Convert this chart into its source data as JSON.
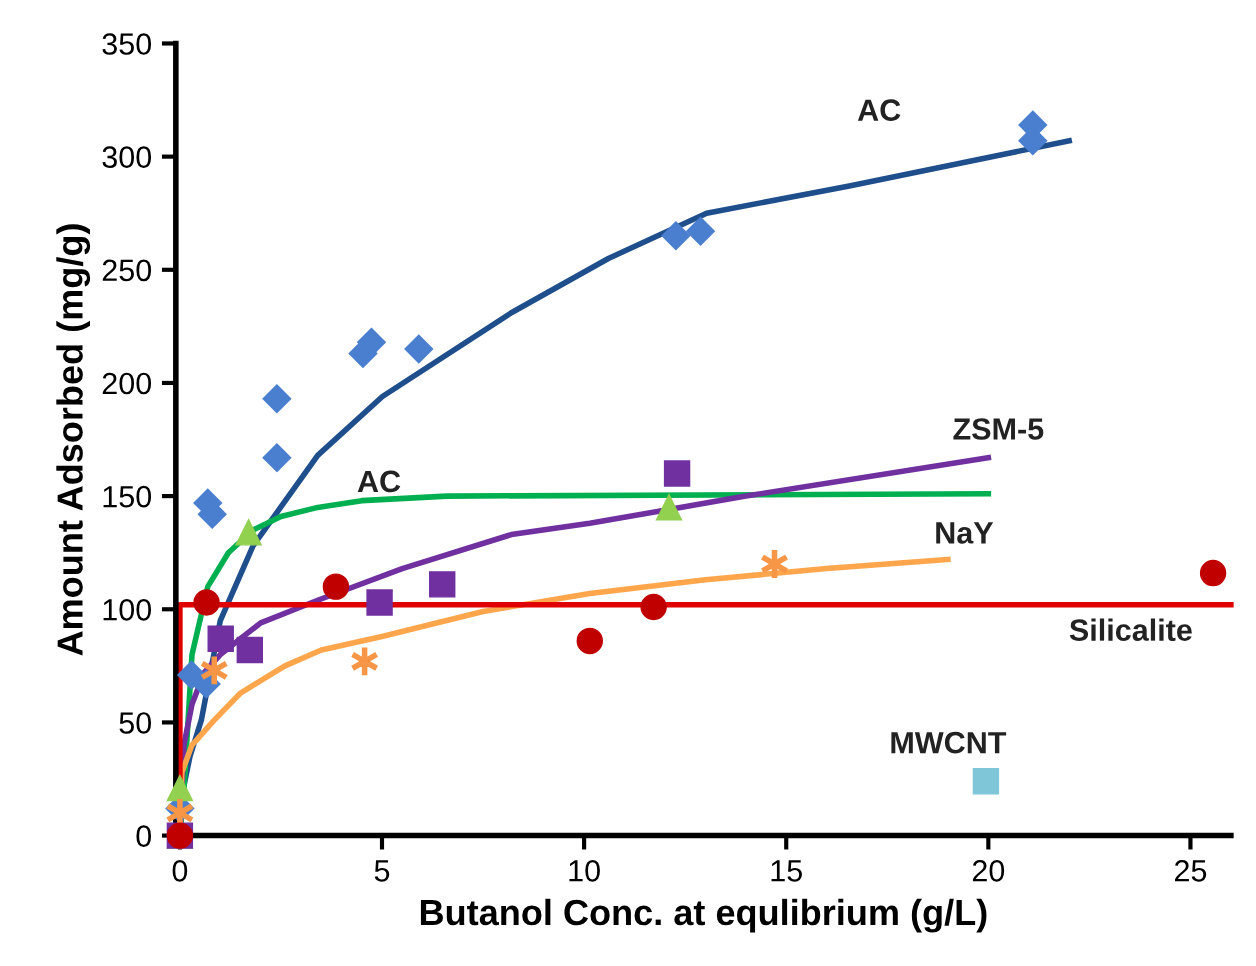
{
  "chart_data": {
    "type": "scatter",
    "xlabel": "Butanol Conc. at equlibrium (g/L)",
    "ylabel": "Amount Adsorbed (mg/g)",
    "xlim": [
      -0.1,
      26
    ],
    "ylim": [
      0,
      350
    ],
    "xticks": [
      0,
      5,
      10,
      15,
      20,
      25
    ],
    "yticks": [
      0,
      50,
      100,
      150,
      200,
      250,
      300,
      350
    ],
    "grid": false,
    "legend": false,
    "series": [
      {
        "type": "line",
        "name": "AC",
        "color": "#1f4e8c",
        "marker": "none",
        "x": [
          0,
          0.1,
          0.25,
          0.53,
          1.0,
          1.81,
          3.41,
          5.01,
          8.2,
          10.6,
          13.03,
          16.56,
          22.0
        ],
        "values": [
          0,
          22,
          35,
          51,
          95,
          128,
          168,
          194,
          231,
          255,
          275,
          287,
          307
        ]
      },
      {
        "type": "line",
        "name": "AC",
        "color": "#00b050",
        "marker": "none",
        "x": [
          0,
          0.1,
          0.3,
          0.69,
          1.2,
          1.81,
          2.5,
          3.41,
          4.5,
          6.6,
          20.0
        ],
        "values": [
          0,
          20,
          80,
          110,
          125,
          135,
          141,
          145,
          148,
          150,
          151
        ]
      },
      {
        "type": "line",
        "name": "ZSM-5",
        "color": "#7030a0",
        "marker": "none",
        "x": [
          0,
          0.1,
          0.3,
          0.6,
          1.0,
          2.0,
          3.41,
          5.5,
          8.2,
          10.14,
          14.0,
          20.0
        ],
        "values": [
          0,
          40,
          58,
          72,
          80,
          94,
          104,
          118,
          133,
          138,
          150,
          167
        ]
      },
      {
        "type": "line",
        "name": "NaY",
        "color": "#ffa64d",
        "marker": "none",
        "x": [
          0,
          0.05,
          0.3,
          0.85,
          1.5,
          2.6,
          3.5,
          5.0,
          7.5,
          10.14,
          13.0,
          16.0,
          19.0
        ],
        "values": [
          0,
          28,
          40,
          51,
          63,
          75,
          82,
          88,
          99,
          107,
          113,
          118,
          122
        ]
      },
      {
        "type": "line",
        "name": "Silicalite",
        "color": "#e00000",
        "marker": "none",
        "x": [
          0,
          0,
          26
        ],
        "values": [
          0,
          102,
          102
        ]
      },
      {
        "color": "#4a7fcf",
        "marker": "diamond",
        "x": [
          0,
          0.29,
          0.65,
          0.69,
          0.8,
          2.4,
          2.4,
          4.53,
          4.74,
          5.91,
          12.27,
          12.88,
          21.1,
          21.1
        ],
        "values": [
          12,
          71,
          67,
          147,
          142,
          167,
          193,
          213,
          218,
          215,
          265,
          267,
          314,
          307
        ]
      },
      {
        "color": "#92d050",
        "marker": "triangle",
        "x": [
          0,
          0,
          1.7,
          12.1
        ],
        "values": [
          0,
          21,
          134,
          145
        ]
      },
      {
        "color": "#7030a0",
        "marker": "square",
        "x": [
          0,
          1.01,
          1.73,
          4.94,
          6.49,
          12.3
        ],
        "values": [
          0,
          87,
          82,
          103,
          111,
          160
        ]
      },
      {
        "color": "#f79646",
        "marker": "cross",
        "x": [
          0,
          0.85,
          4.57,
          14.71
        ],
        "values": [
          10,
          73,
          77,
          120
        ]
      },
      {
        "color": "#c00000",
        "marker": "circle",
        "x": [
          0,
          0.66,
          3.86,
          10.14,
          11.72,
          25.56
        ],
        "values": [
          0,
          103,
          110,
          86,
          101,
          116
        ]
      },
      {
        "name": "MWCNT",
        "color": "#7fc6d9",
        "marker": "square",
        "x": [
          19.94
        ],
        "values": [
          24
        ]
      }
    ]
  }
}
